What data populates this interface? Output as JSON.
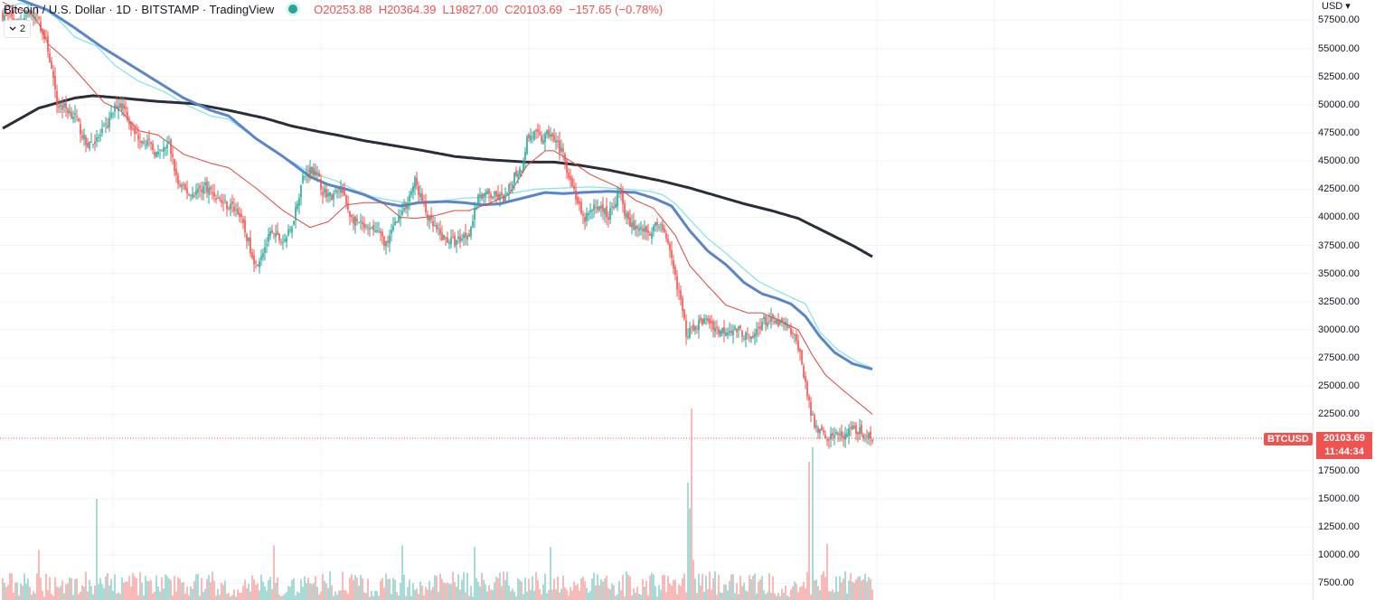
{
  "header": {
    "title": "Bitcoin / U.S. Dollar · 1D · BITSTAMP · TradingView",
    "ohlc": {
      "open_key": "O",
      "open": "20253.88",
      "high_key": "H",
      "high": "20364.39",
      "low_key": "L",
      "low": "19827.00",
      "close_key": "C",
      "close": "20103.69",
      "change": "−157.65 (−0.78%)"
    },
    "collapse_count": "2"
  },
  "price_axis": {
    "currency": "USD",
    "labels": [
      "57500.00",
      "55000.00",
      "52500.00",
      "50000.00",
      "47500.00",
      "45000.00",
      "42500.00",
      "40000.00",
      "37500.00",
      "35000.00",
      "32500.00",
      "30000.00",
      "27500.00",
      "25000.00",
      "22500.00",
      "17500.00",
      "15000.00",
      "12500.00",
      "10000.00",
      "7500.00"
    ]
  },
  "last_price": {
    "symbol": "BTCUSD",
    "value": "20103.69",
    "countdown": "11:44:34"
  },
  "colors": {
    "up": "#26a69a",
    "down": "#ef5350",
    "volume_up": "#92d2cc",
    "volume_down": "#f7a9a7",
    "ma20": "#e0463c",
    "ma50": "#5b84c9",
    "ma50b": "#7fe3e8",
    "ma200": "#2a2e39",
    "grid": "#f0f3fa"
  },
  "chart_data": {
    "type": "candlestick",
    "symbol": "BTCUSD",
    "interval": "1D",
    "ylim": [
      6000,
      59300
    ],
    "volume_ylim": [
      7500,
      17000
    ],
    "anchors_close": [
      [
        0,
        58000
      ],
      [
        8,
        57400
      ],
      [
        15,
        58200
      ],
      [
        20,
        57400
      ],
      [
        25,
        55000
      ],
      [
        30,
        50000
      ],
      [
        34,
        49800
      ],
      [
        40,
        49000
      ],
      [
        46,
        46500
      ],
      [
        52,
        46800
      ],
      [
        58,
        48200
      ],
      [
        63,
        50000
      ],
      [
        67,
        50000
      ],
      [
        72,
        47500
      ],
      [
        79,
        46800
      ],
      [
        86,
        45500
      ],
      [
        92,
        46500
      ],
      [
        97,
        42900
      ],
      [
        104,
        42000
      ],
      [
        112,
        42800
      ],
      [
        120,
        41500
      ],
      [
        130,
        40600
      ],
      [
        140,
        35800
      ],
      [
        148,
        38400
      ],
      [
        155,
        37900
      ],
      [
        159,
        38700
      ],
      [
        166,
        43500
      ],
      [
        172,
        44500
      ],
      [
        177,
        42400
      ],
      [
        182,
        41800
      ],
      [
        187,
        42500
      ],
      [
        193,
        39900
      ],
      [
        202,
        38800
      ],
      [
        206,
        38900
      ],
      [
        213,
        37500
      ],
      [
        217,
        39800
      ],
      [
        221,
        40200
      ],
      [
        228,
        43200
      ],
      [
        236,
        39600
      ],
      [
        243,
        38200
      ],
      [
        250,
        37800
      ],
      [
        258,
        38700
      ],
      [
        264,
        42100
      ],
      [
        271,
        41900
      ],
      [
        278,
        41600
      ],
      [
        283,
        43800
      ],
      [
        287,
        44400
      ],
      [
        290,
        47000
      ],
      [
        294,
        47400
      ],
      [
        298,
        46900
      ],
      [
        304,
        47600
      ],
      [
        310,
        45400
      ],
      [
        316,
        42400
      ],
      [
        321,
        39700
      ],
      [
        329,
        41100
      ],
      [
        335,
        40100
      ],
      [
        341,
        42300
      ],
      [
        346,
        39400
      ],
      [
        352,
        39000
      ],
      [
        358,
        38700
      ],
      [
        364,
        39600
      ],
      [
        369,
        36700
      ],
      [
        374,
        33300
      ],
      [
        378,
        29700
      ],
      [
        384,
        30500
      ],
      [
        390,
        30900
      ],
      [
        396,
        29900
      ],
      [
        402,
        30100
      ],
      [
        408,
        29900
      ],
      [
        414,
        29000
      ],
      [
        420,
        30800
      ],
      [
        426,
        30700
      ],
      [
        432,
        30400
      ],
      [
        436,
        29800
      ],
      [
        440,
        28600
      ],
      [
        444,
        25300
      ],
      [
        447,
        22300
      ],
      [
        452,
        20900
      ],
      [
        456,
        20500
      ],
      [
        460,
        20900
      ],
      [
        464,
        20300
      ],
      [
        470,
        21100
      ],
      [
        475,
        20900
      ],
      [
        480,
        20260
      ],
      [
        481,
        20103.69
      ]
    ],
    "anchors_ma20": [
      [
        0,
        59100
      ],
      [
        8,
        58500
      ],
      [
        15,
        58200
      ],
      [
        20,
        57200
      ],
      [
        25,
        55400
      ],
      [
        35,
        54000
      ],
      [
        45,
        52200
      ],
      [
        56,
        50200
      ],
      [
        65,
        49500
      ],
      [
        75,
        47700
      ],
      [
        86,
        47300
      ],
      [
        100,
        45600
      ],
      [
        115,
        44800
      ],
      [
        125,
        44400
      ],
      [
        140,
        42600
      ],
      [
        155,
        40600
      ],
      [
        170,
        39100
      ],
      [
        180,
        39600
      ],
      [
        190,
        41100
      ],
      [
        200,
        41300
      ],
      [
        210,
        41300
      ],
      [
        220,
        40000
      ],
      [
        228,
        39900
      ],
      [
        238,
        40100
      ],
      [
        250,
        40600
      ],
      [
        258,
        40600
      ],
      [
        270,
        41300
      ],
      [
        280,
        42000
      ],
      [
        290,
        44600
      ],
      [
        300,
        45900
      ],
      [
        305,
        45900
      ],
      [
        315,
        44900
      ],
      [
        325,
        43800
      ],
      [
        340,
        42700
      ],
      [
        350,
        41500
      ],
      [
        360,
        40800
      ],
      [
        372,
        38400
      ],
      [
        380,
        35700
      ],
      [
        390,
        33900
      ],
      [
        400,
        32200
      ],
      [
        412,
        31500
      ],
      [
        420,
        31500
      ],
      [
        430,
        30800
      ],
      [
        440,
        30000
      ],
      [
        448,
        27700
      ],
      [
        455,
        26000
      ],
      [
        465,
        24600
      ],
      [
        475,
        23300
      ],
      [
        481,
        22500
      ]
    ],
    "anchors_ma50a": [
      [
        0,
        59900
      ],
      [
        25,
        58400
      ],
      [
        40,
        56800
      ],
      [
        55,
        55100
      ],
      [
        70,
        53600
      ],
      [
        85,
        52100
      ],
      [
        100,
        50600
      ],
      [
        115,
        49500
      ],
      [
        125,
        49000
      ],
      [
        140,
        47000
      ],
      [
        155,
        45400
      ],
      [
        170,
        43600
      ],
      [
        180,
        42900
      ],
      [
        190,
        42500
      ],
      [
        200,
        42000
      ],
      [
        210,
        41300
      ],
      [
        220,
        41000
      ],
      [
        230,
        41300
      ],
      [
        245,
        41400
      ],
      [
        255,
        41300
      ],
      [
        265,
        41100
      ],
      [
        275,
        41200
      ],
      [
        285,
        41600
      ],
      [
        300,
        42200
      ],
      [
        310,
        42100
      ],
      [
        320,
        42200
      ],
      [
        335,
        42300
      ],
      [
        350,
        42200
      ],
      [
        360,
        41700
      ],
      [
        370,
        41000
      ],
      [
        380,
        38800
      ],
      [
        390,
        37000
      ],
      [
        400,
        35800
      ],
      [
        410,
        34200
      ],
      [
        420,
        33200
      ],
      [
        428,
        32800
      ],
      [
        436,
        32300
      ],
      [
        444,
        31200
      ],
      [
        452,
        29400
      ],
      [
        460,
        28000
      ],
      [
        470,
        27000
      ],
      [
        481,
        26500
      ]
    ],
    "anchors_ma50b": [
      [
        0,
        58500
      ],
      [
        10,
        59000
      ],
      [
        20,
        58800
      ],
      [
        30,
        57700
      ],
      [
        40,
        56000
      ],
      [
        52,
        55200
      ],
      [
        62,
        53500
      ],
      [
        75,
        52100
      ],
      [
        90,
        51100
      ],
      [
        100,
        50100
      ],
      [
        115,
        49000
      ],
      [
        125,
        48700
      ],
      [
        140,
        47000
      ],
      [
        155,
        45400
      ],
      [
        170,
        44000
      ],
      [
        185,
        43200
      ],
      [
        195,
        42400
      ],
      [
        205,
        41800
      ],
      [
        215,
        41500
      ],
      [
        225,
        41200
      ],
      [
        240,
        41400
      ],
      [
        255,
        41700
      ],
      [
        270,
        41800
      ],
      [
        280,
        42100
      ],
      [
        295,
        42500
      ],
      [
        310,
        42600
      ],
      [
        325,
        42700
      ],
      [
        345,
        42500
      ],
      [
        358,
        42300
      ],
      [
        365,
        42000
      ],
      [
        372,
        41200
      ],
      [
        380,
        39800
      ],
      [
        390,
        38100
      ],
      [
        400,
        36800
      ],
      [
        410,
        35400
      ],
      [
        418,
        34300
      ],
      [
        428,
        33500
      ],
      [
        436,
        32900
      ],
      [
        444,
        32300
      ],
      [
        452,
        29800
      ],
      [
        462,
        28200
      ],
      [
        472,
        27200
      ],
      [
        481,
        26600
      ]
    ],
    "anchors_ma200": [
      [
        0,
        47900
      ],
      [
        20,
        49700
      ],
      [
        40,
        50600
      ],
      [
        50,
        50800
      ],
      [
        65,
        50600
      ],
      [
        85,
        50300
      ],
      [
        105,
        50100
      ],
      [
        125,
        49500
      ],
      [
        145,
        48800
      ],
      [
        160,
        48100
      ],
      [
        175,
        47600
      ],
      [
        185,
        47300
      ],
      [
        200,
        46800
      ],
      [
        215,
        46400
      ],
      [
        230,
        46000
      ],
      [
        250,
        45400
      ],
      [
        270,
        45100
      ],
      [
        290,
        44900
      ],
      [
        305,
        44900
      ],
      [
        320,
        44600
      ],
      [
        335,
        44200
      ],
      [
        350,
        43700
      ],
      [
        365,
        43200
      ],
      [
        380,
        42600
      ],
      [
        395,
        41900
      ],
      [
        410,
        41200
      ],
      [
        425,
        40600
      ],
      [
        440,
        39900
      ],
      [
        455,
        38700
      ],
      [
        470,
        37500
      ],
      [
        481,
        36500
      ]
    ],
    "volume_spikes": [
      [
        52,
        13800
      ],
      [
        303,
        10800
      ],
      [
        379,
        14800
      ],
      [
        380,
        13200
      ],
      [
        381,
        19400
      ],
      [
        382,
        10000
      ],
      [
        446,
        16100
      ],
      [
        448,
        17000
      ],
      [
        456,
        11000
      ],
      [
        221,
        10900
      ],
      [
        150,
        10900
      ],
      [
        20,
        10600
      ],
      [
        261,
        10800
      ]
    ]
  }
}
